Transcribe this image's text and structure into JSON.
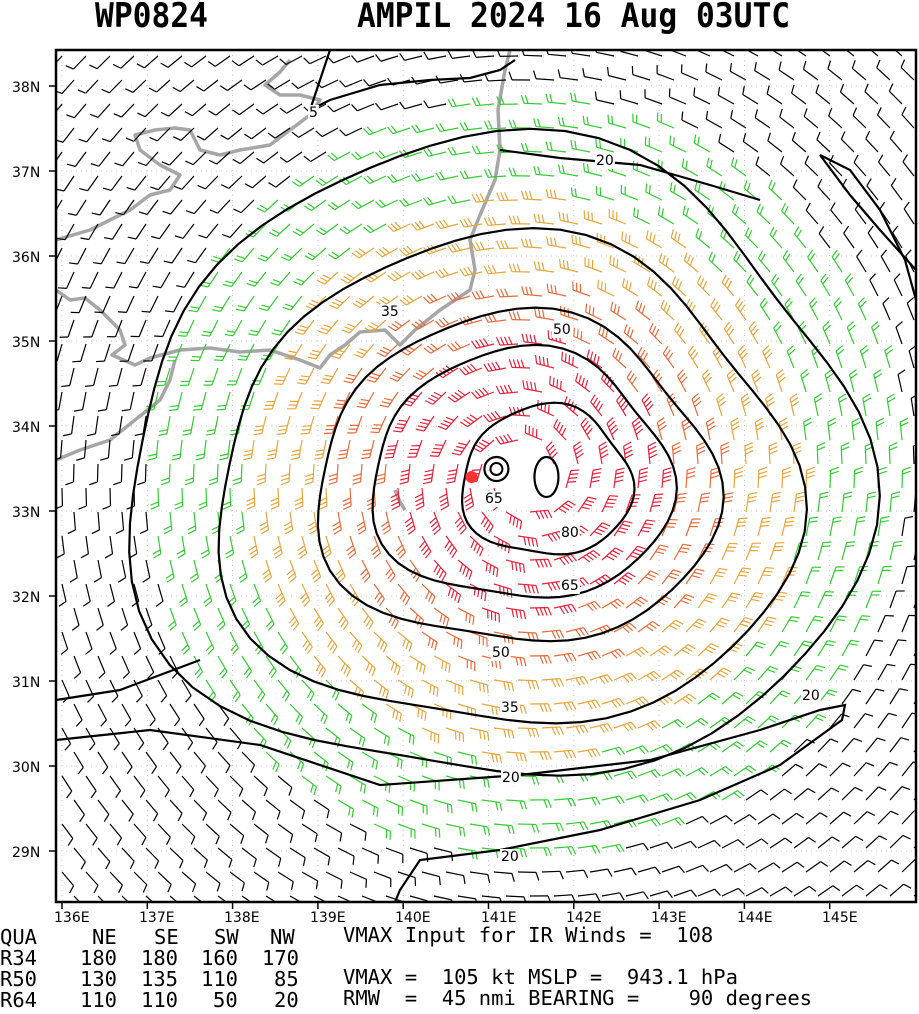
{
  "header": {
    "storm_id": "WP0824",
    "storm_title": "AMPIL 2024 16 Aug 03UTC"
  },
  "map": {
    "lat_labels": [
      "38N",
      "37N",
      "36N",
      "35N",
      "34N",
      "33N",
      "32N",
      "31N",
      "30N",
      "29N"
    ],
    "lon_labels": [
      "136E",
      "137E",
      "138E",
      "139E",
      "140E",
      "141E",
      "142E",
      "143E",
      "144E",
      "145E"
    ],
    "contour_labels": [
      "5",
      "20",
      "35",
      "50",
      "65",
      "80",
      "65",
      "50",
      "35",
      "20",
      "20",
      "20"
    ],
    "storm_center": {
      "lat": 33.4,
      "lon": 140.8
    },
    "colors": {
      "barb_weak": "#000000",
      "barb_34kt": "#33cc33",
      "barb_50kt": "#e8a53a",
      "barb_64kt": "#e86a3a",
      "barb_80kt": "#e8203a",
      "coastline": "#a6a6a6",
      "center_marker": "#ff3333"
    }
  },
  "table": {
    "headers": [
      "QUA",
      "NE",
      "SE",
      "SW",
      "NW"
    ],
    "rows": [
      {
        "label": "R34",
        "ne": "180",
        "se": "180",
        "sw": "160",
        "nw": "170"
      },
      {
        "label": "R50",
        "ne": "130",
        "se": "135",
        "sw": "110",
        "nw": "85"
      },
      {
        "label": "R64",
        "ne": "110",
        "se": "110",
        "sw": "50",
        "nw": "20"
      }
    ]
  },
  "stats": {
    "line1": "VMAX Input for IR Winds =  108",
    "line2": "VMAX =  105 kt MSLP =  943.1 hPa",
    "line3": "RMW  =  45 nmi BEARING =    90 degrees"
  }
}
